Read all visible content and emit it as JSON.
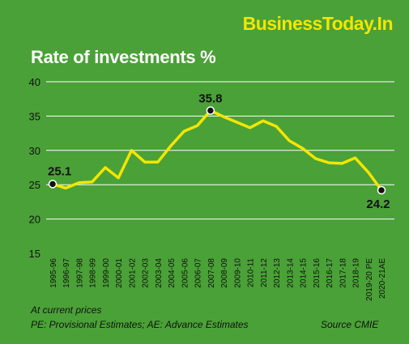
{
  "header": {
    "brand": "BusinessToday.In"
  },
  "notes": {
    "basis": "At current prices",
    "abbreviations": "PE: Provisional Estimates; AE: Advance Estimates",
    "source": "Source CMIE"
  },
  "colors": {
    "background": "#4aa137",
    "line": "#f3e600",
    "grid": "#ffffff",
    "brand": "#f3e600"
  },
  "chart_data": {
    "type": "line",
    "title": "Rate of investments %",
    "xlabel": "",
    "ylabel": "",
    "ylim": [
      15,
      40
    ],
    "yticks": [
      15,
      20,
      25,
      30,
      35,
      40
    ],
    "grid": true,
    "categories": [
      "1995-96",
      "1996-97",
      "1997-98",
      "1998-99",
      "1999-00",
      "2000-01",
      "2001-02",
      "2002-03",
      "2003-04",
      "2004-05",
      "2005-06",
      "2006-07",
      "2007-08",
      "2008-09",
      "2009-10",
      "2010-11",
      "2011-12",
      "2012-13",
      "2013-14",
      "2014-15",
      "2015-16",
      "2016-17",
      "2017-18",
      "2018-19",
      "2019-20 PE",
      "2020-21AE"
    ],
    "series": [
      {
        "values": [
          25.1,
          24.5,
          25.3,
          25.4,
          27.5,
          26.0,
          30.0,
          28.3,
          28.3,
          30.7,
          32.8,
          33.6,
          35.8,
          34.9,
          34.1,
          33.3,
          34.3,
          33.5,
          31.4,
          30.3,
          28.8,
          28.2,
          28.1,
          28.9,
          26.8,
          24.2
        ]
      }
    ],
    "annotations": [
      {
        "category": "1995-96",
        "value": 25.1,
        "label": "25.1"
      },
      {
        "category": "2007-08",
        "value": 35.8,
        "label": "35.8"
      },
      {
        "category": "2020-21AE",
        "value": 24.2,
        "label": "24.2"
      }
    ]
  }
}
